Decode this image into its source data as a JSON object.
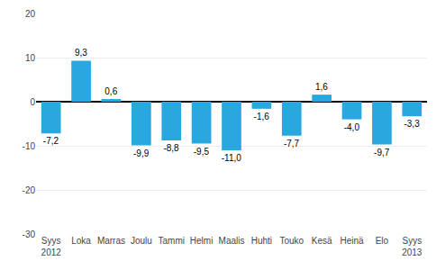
{
  "chart_data": {
    "type": "bar",
    "categories": [
      "Syys\n2012",
      "Loka",
      "Marras",
      "Joulu",
      "Tammi",
      "Helmi",
      "Maalis",
      "Huhti",
      "Touko",
      "Kesä",
      "Heinä",
      "Elo",
      "Syys\n2013"
    ],
    "values": [
      -7.2,
      9.3,
      0.6,
      -9.9,
      -8.8,
      -9.5,
      -11.0,
      -1.6,
      -7.7,
      1.6,
      -4.0,
      -9.7,
      -3.3
    ],
    "value_labels": [
      "-7,2",
      "9,3",
      "0,6",
      "-9,9",
      "-8,8",
      "-9,5",
      "-11,0",
      "-1,6",
      "-7,7",
      "1,6",
      "-4,0",
      "-9,7",
      "-3,3"
    ],
    "color": "#29a8e0",
    "ylim": [
      -30,
      20
    ],
    "yticks": [
      -30,
      -20,
      -10,
      0,
      10,
      20
    ],
    "grid": true,
    "data_labels": true
  }
}
